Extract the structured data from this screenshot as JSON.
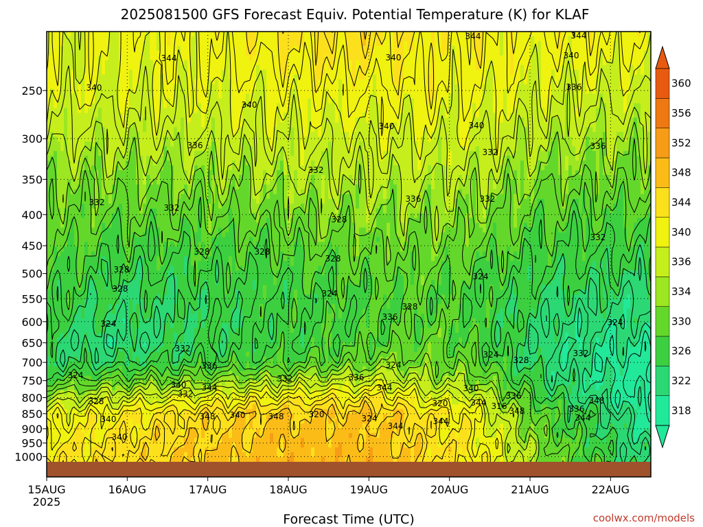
{
  "chart_data": {
    "type": "heatmap",
    "title": "2025081500 GFS Forecast Equiv. Potential Temperature (K) for KLAF",
    "xlabel": "Forecast Time (UTC)",
    "ylabel": "",
    "credit": "coolwx.com/models",
    "x_ticks": [
      "15AUG",
      "16AUG",
      "17AUG",
      "18AUG",
      "19AUG",
      "20AUG",
      "21AUG",
      "22AUG"
    ],
    "x_tick_year": "2025",
    "xlim_hours": [
      0,
      180
    ],
    "y_ticks": [
      250,
      300,
      350,
      400,
      450,
      500,
      550,
      600,
      650,
      700,
      750,
      800,
      850,
      900,
      950,
      1000
    ],
    "ylim_hPa": [
      1020,
      200
    ],
    "y_scale": "log (pressure)",
    "colorbar": {
      "ticks": [
        318,
        322,
        326,
        330,
        334,
        336,
        340,
        344,
        348,
        352,
        356,
        360
      ],
      "colors": [
        "#22e89a",
        "#2cd874",
        "#3cd040",
        "#64d82a",
        "#9ce622",
        "#c6ee1c",
        "#f0f210",
        "#fce01c",
        "#fbbc18",
        "#f69c16",
        "#ee7812",
        "#e85a10"
      ]
    },
    "contour_values": [
      316,
      318,
      320,
      322,
      324,
      326,
      328,
      330,
      332,
      334,
      336,
      338,
      340,
      342,
      344,
      346,
      348
    ],
    "contour_labels": [
      "344",
      "344",
      "340",
      "340",
      "344",
      "340",
      "336",
      "340",
      "340",
      "340",
      "336",
      "332",
      "336",
      "332",
      "336",
      "332",
      "332",
      "332",
      "328",
      "332",
      "328",
      "328",
      "328",
      "324",
      "328",
      "328",
      "324",
      "336",
      "328",
      "324",
      "324",
      "324",
      "328",
      "332",
      "332",
      "336",
      "332",
      "336",
      "344",
      "324",
      "324",
      "340",
      "336",
      "332",
      "340",
      "344",
      "328",
      "320",
      "316",
      "336",
      "348",
      "344",
      "348",
      "340",
      "348",
      "340",
      "348",
      "320",
      "324",
      "344"
    ],
    "theta_e": [
      [
        340.5,
        340.5,
        341.5,
        343.5,
        345.5,
        345.5,
        343.5,
        343,
        342.5,
        342.5
      ],
      [
        340,
        339.5,
        340,
        340.5,
        341.5,
        342,
        342,
        341.5,
        339,
        338.5
      ],
      [
        337,
        336.5,
        337,
        338,
        338.5,
        339,
        339,
        339,
        336,
        335
      ],
      [
        334.5,
        333.5,
        334,
        335,
        336,
        336.5,
        336.5,
        336,
        333,
        332.5
      ],
      [
        332.5,
        331.5,
        331.5,
        332.5,
        333.5,
        334.5,
        334.5,
        334,
        330.5,
        330
      ],
      [
        331,
        329,
        329,
        330,
        331.5,
        332.5,
        333,
        332,
        328.5,
        328
      ],
      [
        330,
        327,
        327.5,
        328.5,
        329.5,
        331,
        331,
        330,
        327,
        326
      ],
      [
        329,
        325.5,
        326.5,
        327.5,
        328.5,
        330,
        330.5,
        329,
        325.5,
        324
      ],
      [
        327.5,
        324.5,
        326,
        327.5,
        328.5,
        330,
        331,
        329.5,
        324.5,
        322.5
      ],
      [
        326,
        323.5,
        326,
        327.5,
        328.5,
        330.5,
        332,
        330,
        323.5,
        321
      ],
      [
        326,
        326,
        328,
        329,
        330.5,
        333.5,
        333,
        332,
        323.5,
        319.5
      ],
      [
        330,
        332,
        333.5,
        335,
        337,
        338.5,
        335.5,
        335,
        325,
        319
      ],
      [
        336,
        338.5,
        340,
        342.5,
        343.5,
        344.5,
        340,
        340,
        327.5,
        318.5
      ],
      [
        341,
        343.5,
        345.5,
        347.5,
        348.5,
        348,
        344.5,
        343,
        330,
        320.5
      ],
      [
        344.5,
        346,
        348,
        349.5,
        350.5,
        350,
        346.5,
        345,
        333,
        323
      ]
    ],
    "theta_e_pressure_levels_hPa": [
      200,
      250,
      300,
      350,
      400,
      450,
      500,
      550,
      600,
      650,
      700,
      750,
      800,
      850,
      1000
    ],
    "theta_e_hours": [
      0,
      20,
      40,
      60,
      80,
      100,
      115,
      125,
      150,
      180
    ]
  }
}
